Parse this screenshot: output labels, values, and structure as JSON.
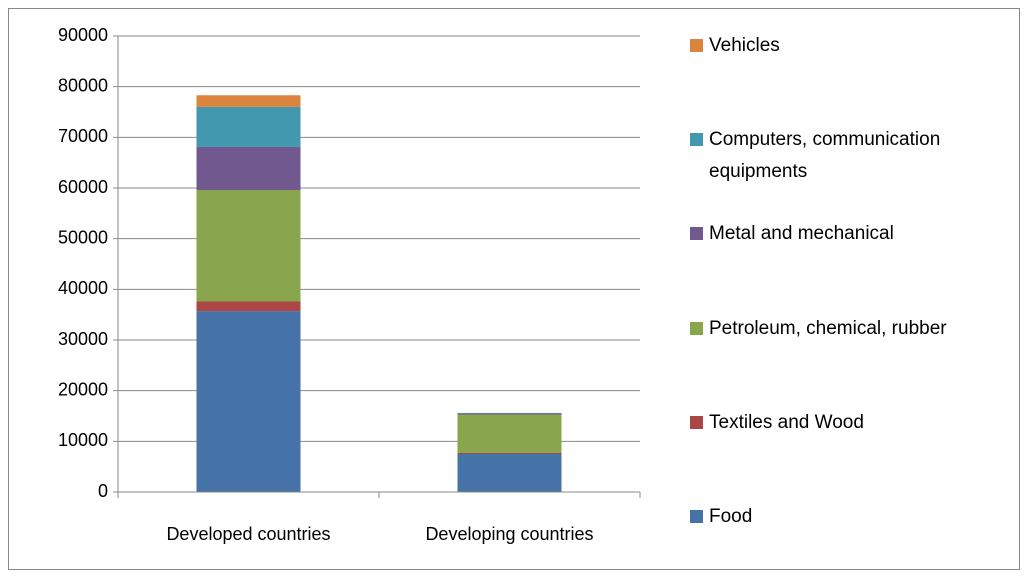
{
  "chart_data": {
    "type": "stacked_bar",
    "categories": [
      "Developed countries",
      "Developing countries"
    ],
    "series": [
      {
        "name": "Food",
        "color": "#4572a7",
        "values": [
          35700,
          7500
        ]
      },
      {
        "name": "Textiles and  Wood",
        "color": "#aa4643",
        "values": [
          1900,
          200
        ]
      },
      {
        "name": "Petroleum, chemical,  rubber",
        "color": "#89a54e",
        "values": [
          22000,
          7600
        ]
      },
      {
        "name": "Metal and mechanical",
        "color": "#71588f",
        "values": [
          8500,
          200
        ]
      },
      {
        "name": "Computers, communication equipments",
        "color": "#4198af",
        "values": [
          7900,
          100
        ]
      },
      {
        "name": "Vehicles",
        "color": "#db843d",
        "values": [
          2300,
          0
        ]
      }
    ],
    "ylim": [
      0,
      90000
    ],
    "yticks": [
      0,
      10000,
      20000,
      30000,
      40000,
      50000,
      60000,
      70000,
      80000,
      90000
    ],
    "grid": true,
    "legend": "right"
  }
}
